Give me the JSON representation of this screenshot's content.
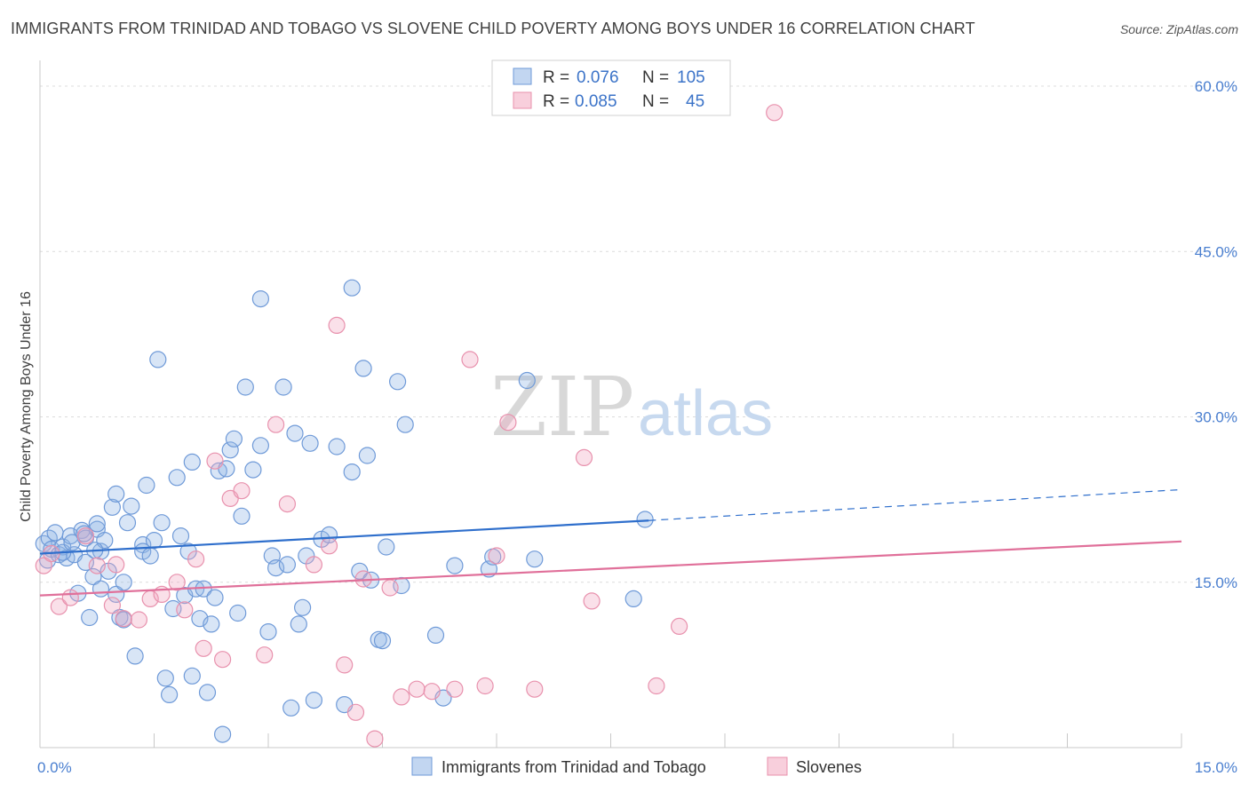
{
  "header": {
    "title": "IMMIGRANTS FROM TRINIDAD AND TOBAGO VS SLOVENE CHILD POVERTY AMONG BOYS UNDER 16 CORRELATION CHART",
    "source": "Source: ZipAtlas.com"
  },
  "watermark": {
    "zip": "ZIP",
    "atlas": "atlas"
  },
  "legend": {
    "rows": [
      {
        "r_label": "R =",
        "r_value": "0.076",
        "n_label": "N =",
        "n_value": "105",
        "color": "#8fb4e6"
      },
      {
        "r_label": "R =",
        "r_value": "0.085",
        "n_label": "N =",
        "n_value": "45",
        "color": "#f2a7bf"
      }
    ]
  },
  "chart_data": {
    "type": "scatter",
    "title": "IMMIGRANTS FROM TRINIDAD AND TOBAGO VS SLOVENE CHILD POVERTY AMONG BOYS UNDER 16 CORRELATION CHART",
    "xlabel": "",
    "ylabel": "Child Poverty Among Boys Under 16",
    "xlim": [
      0,
      15
    ],
    "ylim": [
      0,
      60
    ],
    "x_tick_labels": [
      "0.0%",
      "15.0%"
    ],
    "y_ticks": [
      15,
      30,
      45,
      60
    ],
    "y_tick_labels": [
      "15.0%",
      "30.0%",
      "45.0%",
      "60.0%"
    ],
    "grid": true,
    "legend_position": "top-center",
    "series": [
      {
        "name": "Immigrants from Trinidad and Tobago",
        "color": "#8fb4e6",
        "line_color": "#2f6fcc",
        "trend": {
          "x": [
            0,
            8
          ],
          "y": [
            17.6,
            20.6
          ],
          "dashed_to": [
            15,
            23.4
          ]
        },
        "points": [
          [
            0.05,
            18.5
          ],
          [
            0.1,
            17.0
          ],
          [
            0.12,
            19.0
          ],
          [
            0.15,
            18.0
          ],
          [
            0.2,
            19.5
          ],
          [
            0.25,
            17.5
          ],
          [
            0.3,
            18.2
          ],
          [
            0.35,
            17.2
          ],
          [
            0.4,
            19.2
          ],
          [
            0.45,
            17.5
          ],
          [
            0.5,
            14.0
          ],
          [
            0.55,
            19.7
          ],
          [
            0.6,
            16.8
          ],
          [
            0.6,
            19.0
          ],
          [
            0.65,
            11.8
          ],
          [
            0.7,
            15.5
          ],
          [
            0.75,
            19.8
          ],
          [
            0.75,
            20.3
          ],
          [
            0.8,
            14.4
          ],
          [
            0.8,
            17.8
          ],
          [
            0.85,
            18.8
          ],
          [
            0.9,
            16.0
          ],
          [
            0.95,
            21.8
          ],
          [
            1.0,
            23.0
          ],
          [
            1.0,
            13.9
          ],
          [
            1.05,
            11.8
          ],
          [
            1.1,
            15.0
          ],
          [
            1.1,
            11.6
          ],
          [
            1.15,
            20.4
          ],
          [
            1.2,
            21.9
          ],
          [
            1.25,
            8.3
          ],
          [
            1.35,
            18.4
          ],
          [
            1.35,
            17.8
          ],
          [
            1.4,
            23.8
          ],
          [
            1.45,
            17.4
          ],
          [
            1.5,
            18.8
          ],
          [
            1.55,
            35.2
          ],
          [
            1.6,
            20.4
          ],
          [
            1.65,
            6.3
          ],
          [
            1.7,
            4.8
          ],
          [
            1.75,
            12.6
          ],
          [
            1.8,
            24.5
          ],
          [
            1.85,
            19.2
          ],
          [
            1.9,
            13.8
          ],
          [
            1.95,
            17.8
          ],
          [
            2.0,
            25.9
          ],
          [
            2.0,
            6.5
          ],
          [
            2.05,
            14.4
          ],
          [
            2.1,
            11.7
          ],
          [
            2.15,
            14.4
          ],
          [
            2.2,
            5.0
          ],
          [
            2.25,
            11.2
          ],
          [
            2.3,
            13.6
          ],
          [
            2.35,
            25.1
          ],
          [
            2.4,
            1.2
          ],
          [
            2.45,
            25.3
          ],
          [
            2.5,
            27.0
          ],
          [
            2.55,
            28.0
          ],
          [
            2.6,
            12.2
          ],
          [
            2.65,
            21.0
          ],
          [
            2.7,
            32.7
          ],
          [
            2.8,
            25.2
          ],
          [
            2.9,
            27.4
          ],
          [
            2.9,
            40.7
          ],
          [
            3.0,
            10.5
          ],
          [
            3.05,
            17.4
          ],
          [
            3.1,
            16.3
          ],
          [
            3.2,
            32.7
          ],
          [
            3.25,
            16.6
          ],
          [
            3.3,
            3.6
          ],
          [
            3.35,
            28.5
          ],
          [
            3.4,
            11.2
          ],
          [
            3.45,
            12.7
          ],
          [
            3.5,
            17.4
          ],
          [
            3.55,
            27.6
          ],
          [
            3.6,
            4.3
          ],
          [
            3.7,
            18.9
          ],
          [
            3.8,
            19.3
          ],
          [
            3.9,
            27.3
          ],
          [
            4.0,
            3.9
          ],
          [
            4.1,
            25.0
          ],
          [
            4.1,
            41.7
          ],
          [
            4.2,
            16.0
          ],
          [
            4.25,
            34.4
          ],
          [
            4.3,
            26.5
          ],
          [
            4.35,
            15.2
          ],
          [
            4.45,
            9.8
          ],
          [
            4.5,
            9.7
          ],
          [
            4.55,
            18.2
          ],
          [
            4.7,
            33.2
          ],
          [
            4.75,
            14.7
          ],
          [
            4.8,
            29.3
          ],
          [
            5.2,
            10.2
          ],
          [
            5.3,
            4.5
          ],
          [
            5.45,
            16.5
          ],
          [
            5.9,
            16.2
          ],
          [
            5.95,
            17.3
          ],
          [
            6.4,
            33.3
          ],
          [
            6.5,
            17.1
          ],
          [
            7.8,
            13.5
          ],
          [
            7.95,
            20.7
          ],
          [
            0.3,
            17.7
          ],
          [
            0.42,
            18.6
          ],
          [
            0.58,
            19.4
          ],
          [
            0.72,
            17.9
          ]
        ]
      },
      {
        "name": "Slovenes",
        "color": "#f2a7bf",
        "line_color": "#e0709a",
        "trend": {
          "x": [
            0,
            15
          ],
          "y": [
            13.8,
            18.7
          ]
        },
        "points": [
          [
            0.05,
            16.5
          ],
          [
            0.15,
            17.6
          ],
          [
            0.25,
            12.8
          ],
          [
            0.4,
            13.6
          ],
          [
            0.6,
            19.2
          ],
          [
            0.75,
            16.5
          ],
          [
            0.95,
            12.9
          ],
          [
            1.0,
            16.6
          ],
          [
            1.1,
            11.7
          ],
          [
            1.3,
            11.6
          ],
          [
            1.45,
            13.5
          ],
          [
            1.6,
            13.9
          ],
          [
            1.8,
            15.0
          ],
          [
            1.9,
            12.5
          ],
          [
            2.05,
            17.1
          ],
          [
            2.15,
            9.0
          ],
          [
            2.3,
            26.0
          ],
          [
            2.4,
            8.0
          ],
          [
            2.5,
            22.6
          ],
          [
            2.65,
            23.3
          ],
          [
            2.95,
            8.4
          ],
          [
            3.1,
            29.3
          ],
          [
            3.25,
            22.1
          ],
          [
            3.6,
            16.6
          ],
          [
            3.8,
            18.3
          ],
          [
            3.9,
            38.3
          ],
          [
            4.0,
            7.5
          ],
          [
            4.15,
            3.2
          ],
          [
            4.25,
            15.3
          ],
          [
            4.4,
            0.8
          ],
          [
            4.6,
            14.5
          ],
          [
            4.75,
            4.6
          ],
          [
            4.95,
            5.3
          ],
          [
            5.15,
            5.1
          ],
          [
            5.45,
            5.3
          ],
          [
            5.65,
            35.2
          ],
          [
            5.85,
            5.6
          ],
          [
            6.0,
            17.4
          ],
          [
            6.15,
            29.5
          ],
          [
            6.5,
            5.3
          ],
          [
            7.15,
            26.3
          ],
          [
            7.25,
            13.3
          ],
          [
            8.1,
            5.6
          ],
          [
            8.4,
            11.0
          ],
          [
            9.65,
            57.6
          ]
        ]
      }
    ]
  }
}
